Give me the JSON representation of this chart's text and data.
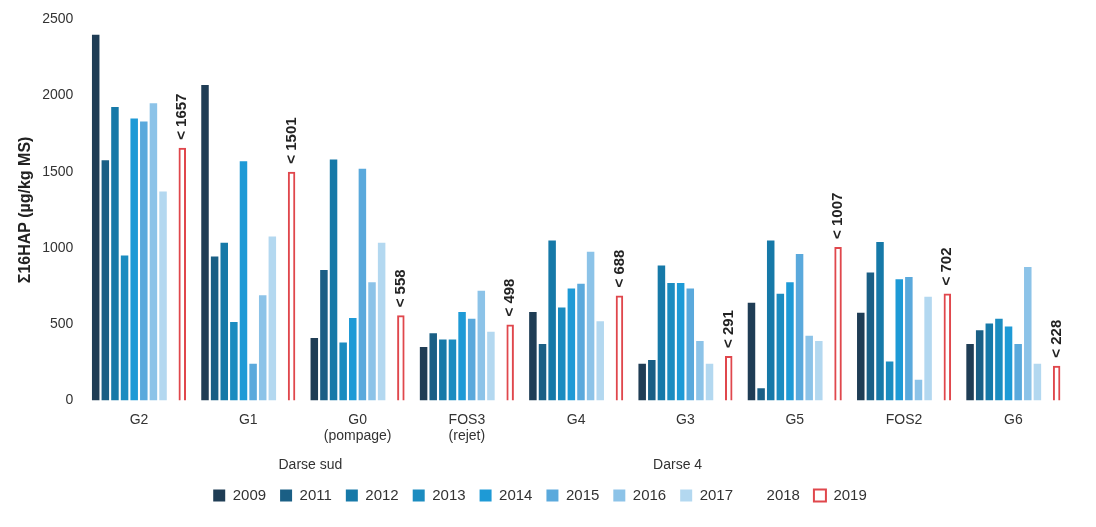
{
  "chart_data": {
    "type": "bar",
    "ylabel": "Σ16HAP (µg/kg MS)",
    "categories": [
      "G2",
      "G1",
      "G0 (pompage)",
      "FOS3 (rejet)",
      "G4",
      "G3",
      "G5",
      "FOS2",
      "G6"
    ],
    "ylim": [
      0,
      2500
    ],
    "yticks": [
      0,
      500,
      1000,
      1500,
      2000,
      2500
    ],
    "legend": "bottom",
    "annotations": [
      "Darse sud",
      "Darse 4"
    ],
    "series": [
      {
        "name": "2009",
        "color": "#1f3d55",
        "values": [
          2400,
          2070,
          410,
          350,
          580,
          240,
          640,
          575,
          370
        ]
      },
      {
        "name": "2011",
        "color": "#1a5f85",
        "values": [
          1575,
          945,
          855,
          440,
          370,
          265,
          80,
          840,
          460
        ]
      },
      {
        "name": "2012",
        "color": "#1679a8",
        "values": [
          1925,
          1035,
          1580,
          400,
          1050,
          885,
          1050,
          1040,
          505
        ]
      },
      {
        "name": "2013",
        "color": "#1b8cc0",
        "values": [
          950,
          515,
          380,
          400,
          610,
          770,
          700,
          255,
          535
        ]
      },
      {
        "name": "2014",
        "color": "#1e9ad6",
        "values": [
          1850,
          1570,
          540,
          580,
          735,
          770,
          775,
          795,
          485
        ]
      },
      {
        "name": "2015",
        "color": "#5aa9dc",
        "values": [
          1830,
          240,
          1520,
          535,
          765,
          735,
          960,
          810,
          370
        ]
      },
      {
        "name": "2016",
        "color": "#8cc3e8",
        "values": [
          1950,
          690,
          775,
          720,
          975,
          390,
          425,
          135,
          875
        ]
      },
      {
        "name": "2017",
        "color": "#b3d8f0",
        "values": [
          1370,
          1075,
          1035,
          450,
          520,
          240,
          390,
          680,
          240
        ]
      },
      {
        "name": "2018",
        "values": [
          null,
          null,
          null,
          null,
          null,
          null,
          null,
          null,
          null
        ]
      },
      {
        "name": "2019",
        "color": "#e0474c",
        "values": [
          1657,
          1501,
          558,
          498,
          688,
          291,
          1007,
          702,
          228
        ],
        "value_labels": [
          "< 1657",
          "< 1501",
          "< 558",
          "< 498",
          "< 688",
          "< 291",
          "< 1007",
          "< 702",
          "< 228"
        ]
      }
    ]
  }
}
